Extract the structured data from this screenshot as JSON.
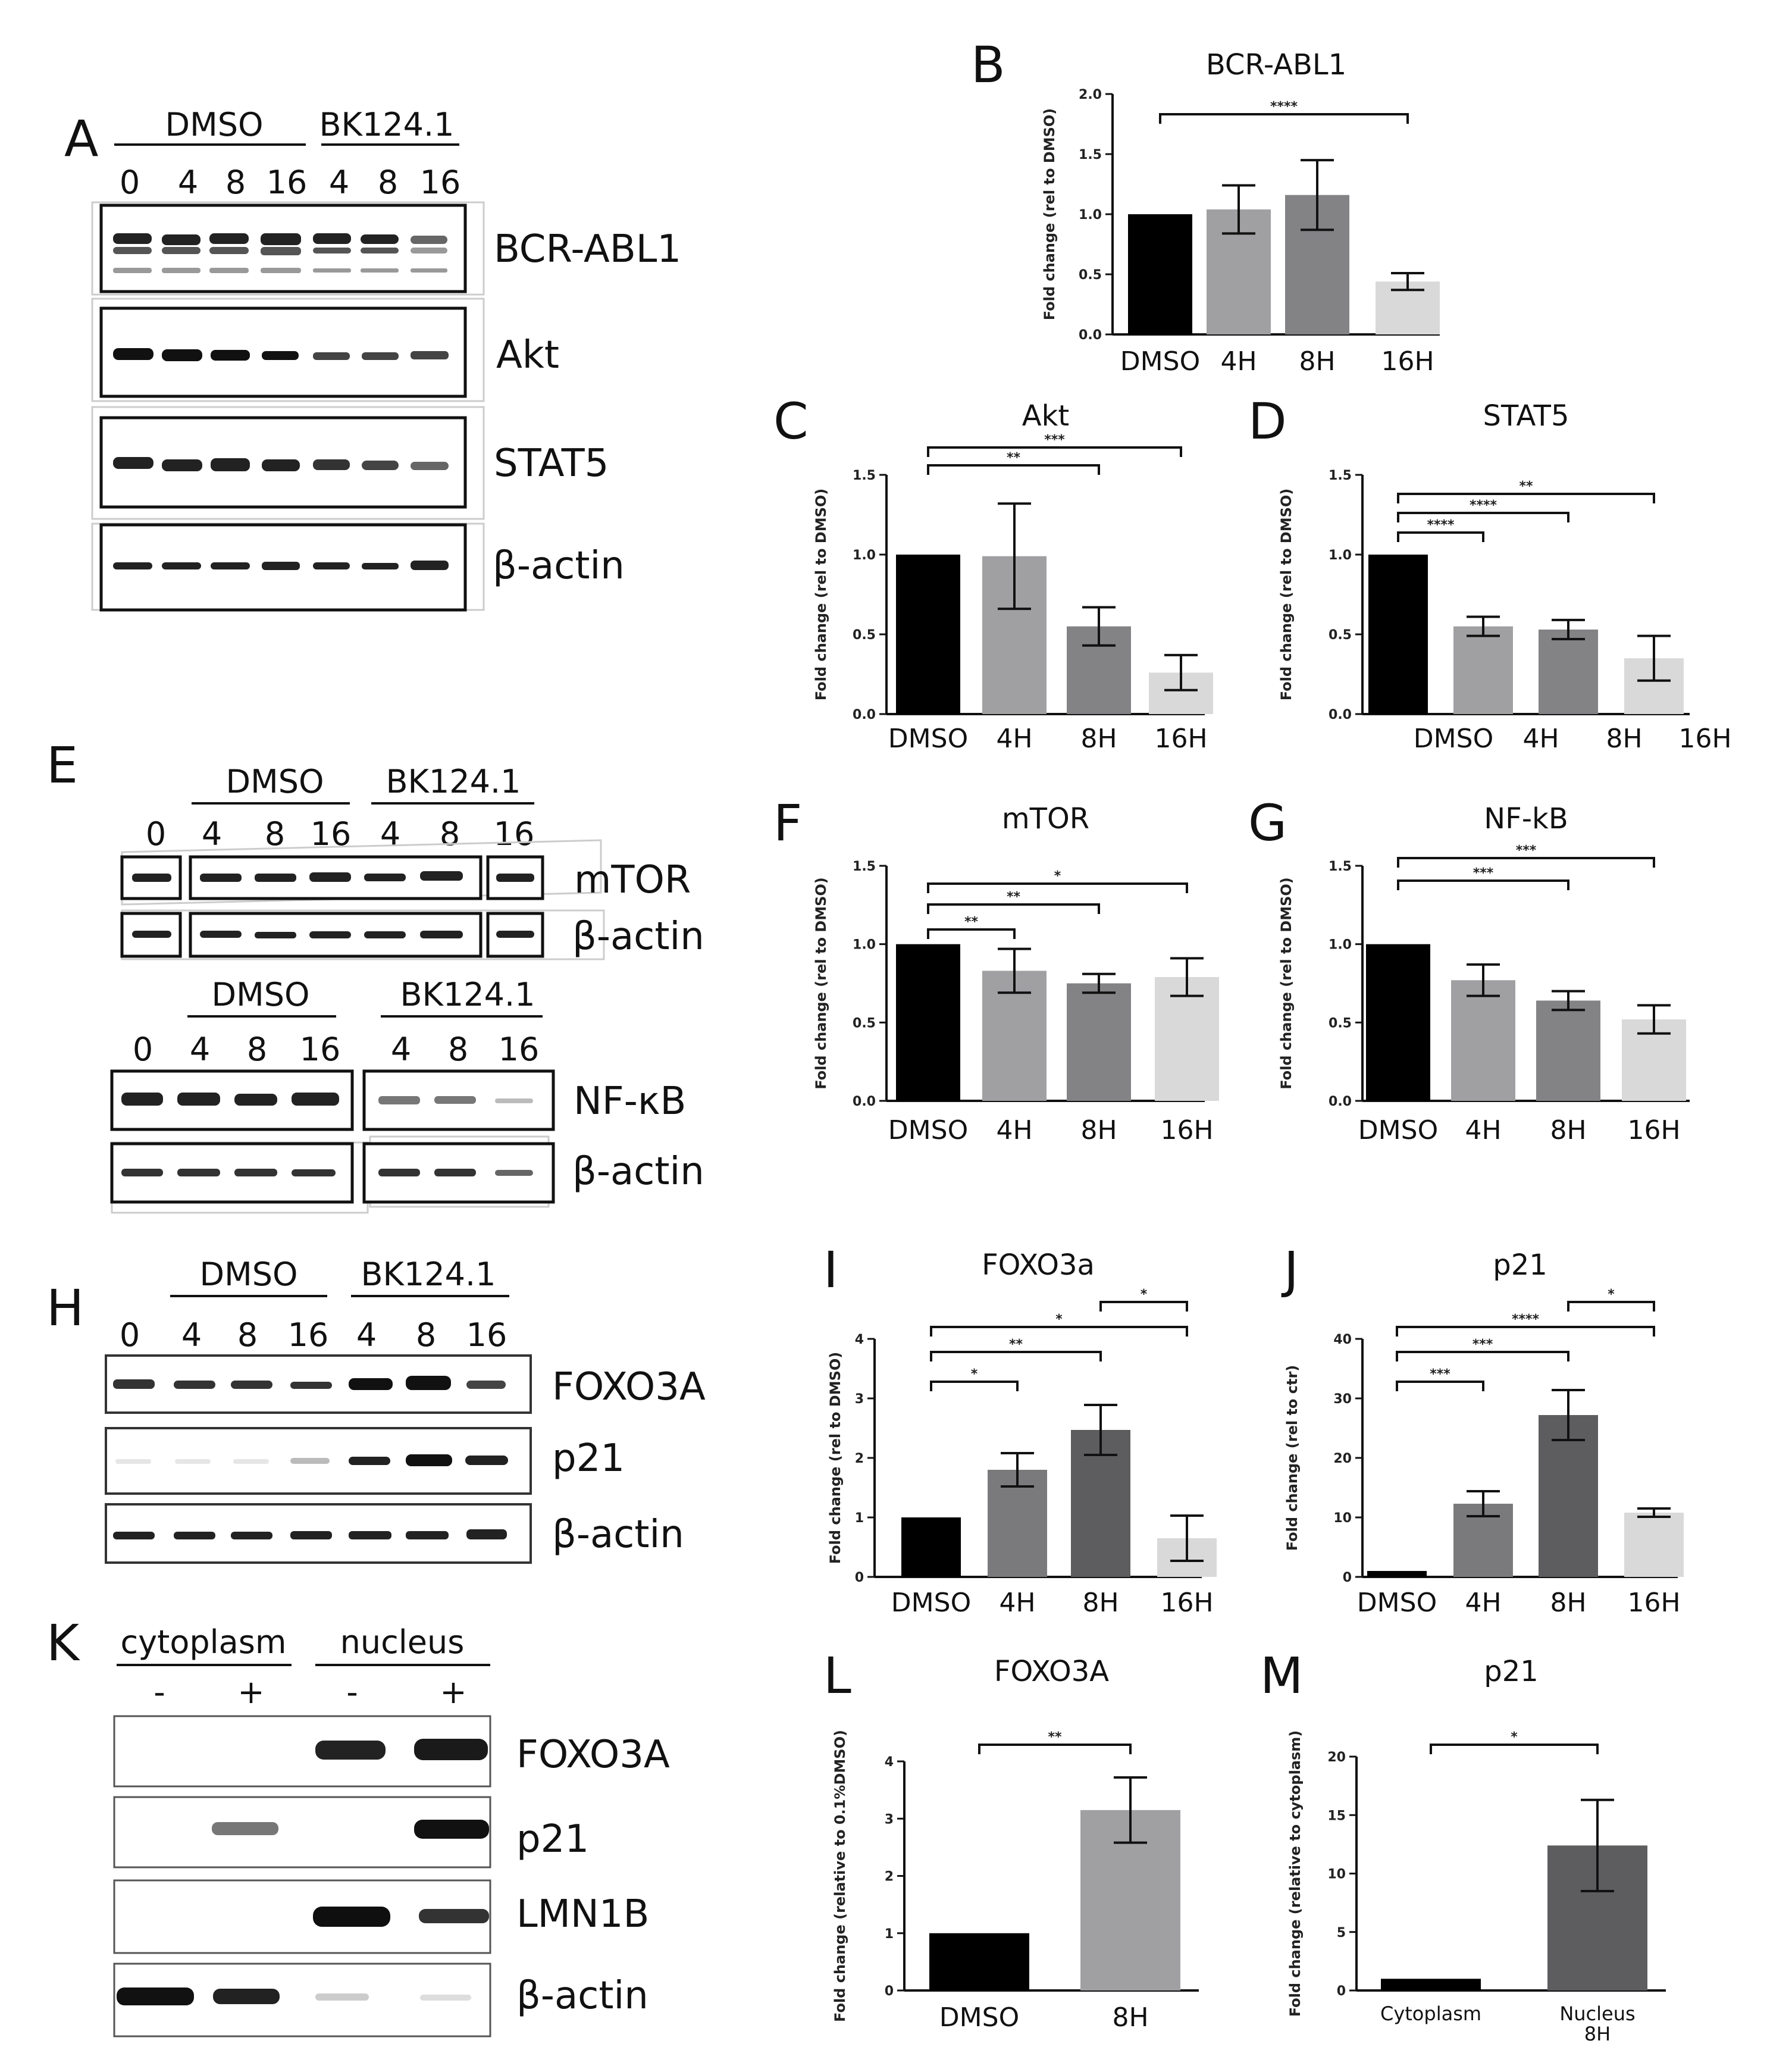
{
  "panel_letters": [
    "A",
    "B",
    "C",
    "D",
    "E",
    "F",
    "G",
    "H",
    "I",
    "J",
    "K",
    "L",
    "M"
  ],
  "blot_A": {
    "groups": [
      "DMSO",
      "BK124.1"
    ],
    "lanes": [
      "0",
      "4",
      "8",
      "16",
      "4",
      "8",
      "16"
    ],
    "proteins": [
      "BCR-ABL1",
      "Akt",
      "STAT5",
      "β-actin"
    ]
  },
  "blot_E": {
    "groups_top": [
      "DMSO",
      "BK124.1"
    ],
    "lanes_top": [
      "0",
      "4",
      "8",
      "16",
      "4",
      "8",
      "16"
    ],
    "proteins_top": [
      "mTOR",
      "β-actin"
    ],
    "groups_bottom": [
      "DMSO",
      "BK124.1"
    ],
    "lanes_bottom": [
      "0",
      "4",
      "8",
      "16",
      "4",
      "8",
      "16"
    ],
    "proteins_bottom": [
      "NF-κB",
      "β-actin"
    ]
  },
  "blot_H": {
    "groups": [
      "DMSO",
      "BK124.1"
    ],
    "lanes": [
      "0",
      "4",
      "8",
      "16",
      "4",
      "8",
      "16"
    ],
    "proteins": [
      "FOXO3A",
      "p21",
      "β-actin"
    ]
  },
  "blot_K": {
    "groups": [
      "cytoplasm",
      "nucleus"
    ],
    "lanes": [
      "-",
      "+",
      "-",
      "+"
    ],
    "proteins": [
      "FOXO3A",
      "p21",
      "LMN1B",
      "β-actin"
    ]
  },
  "chart_data": [
    {
      "id": "B",
      "type": "bar",
      "title": "BCR-ABL1",
      "ylabel": "Fold change (rel to DMSO)",
      "categories": [
        "DMSO",
        "4H",
        "8H",
        "16H"
      ],
      "values": [
        1.0,
        1.04,
        1.16,
        0.44
      ],
      "errors": [
        0,
        0.2,
        0.29,
        0.07
      ],
      "ylim": [
        0,
        2.0
      ],
      "yticks": [
        "0.0",
        "0.5",
        "1.0",
        "1.5",
        "2.0"
      ],
      "colors": [
        "#000000",
        "#a0a0a3",
        "#838386",
        "#d9d9d9"
      ],
      "significance": [
        {
          "from": 0,
          "to": 3,
          "label": "****"
        }
      ]
    },
    {
      "id": "C",
      "type": "bar",
      "title": "Akt",
      "ylabel": "Fold change (rel to DMSO)",
      "categories": [
        "DMSO",
        "4H",
        "8H",
        "16H"
      ],
      "values": [
        1.0,
        0.99,
        0.55,
        0.26
      ],
      "errors": [
        0,
        0.33,
        0.12,
        0.11
      ],
      "ylim": [
        0,
        1.5
      ],
      "yticks": [
        "0.0",
        "0.5",
        "1.0",
        "1.5"
      ],
      "colors": [
        "#000000",
        "#a0a0a3",
        "#838386",
        "#d9d9d9"
      ],
      "significance": [
        {
          "from": 0,
          "to": 2,
          "label": "**"
        },
        {
          "from": 0,
          "to": 3,
          "label": "***"
        }
      ]
    },
    {
      "id": "D",
      "type": "bar",
      "title": "STAT5",
      "ylabel": "Fold change (rel to DMSO)",
      "categories": [
        "DMSO",
        "4H",
        "8H",
        "16H"
      ],
      "values": [
        1.0,
        0.55,
        0.53,
        0.35
      ],
      "errors": [
        0,
        0.06,
        0.06,
        0.14
      ],
      "ylim": [
        0,
        1.5
      ],
      "yticks": [
        "0.0",
        "0.5",
        "1.0",
        "1.5"
      ],
      "colors": [
        "#000000",
        "#a0a0a3",
        "#838386",
        "#d9d9d9"
      ],
      "significance": [
        {
          "from": 0,
          "to": 1,
          "label": "****"
        },
        {
          "from": 0,
          "to": 2,
          "label": "****"
        },
        {
          "from": 0,
          "to": 3,
          "label": "**"
        }
      ]
    },
    {
      "id": "F",
      "type": "bar",
      "title": "mTOR",
      "ylabel": "Fold change (rel to DMSO)",
      "categories": [
        "DMSO",
        "4H",
        "8H",
        "16H"
      ],
      "values": [
        1.0,
        0.83,
        0.75,
        0.79
      ],
      "errors": [
        0,
        0.14,
        0.06,
        0.12
      ],
      "ylim": [
        0,
        1.5
      ],
      "yticks": [
        "0.0",
        "0.5",
        "1.0",
        "1.5"
      ],
      "colors": [
        "#000000",
        "#a0a0a3",
        "#838386",
        "#d9d9d9"
      ],
      "significance": [
        {
          "from": 0,
          "to": 1,
          "label": "**"
        },
        {
          "from": 0,
          "to": 2,
          "label": "**"
        },
        {
          "from": 0,
          "to": 3,
          "label": "*"
        }
      ]
    },
    {
      "id": "G",
      "type": "bar",
      "title": "NF-kB",
      "ylabel": "Fold change (rel to DMSO)",
      "categories": [
        "DMSO",
        "4H",
        "8H",
        "16H"
      ],
      "values": [
        1.0,
        0.77,
        0.64,
        0.52
      ],
      "errors": [
        0,
        0.1,
        0.06,
        0.09
      ],
      "ylim": [
        0,
        1.5
      ],
      "yticks": [
        "0.0",
        "0.5",
        "1.0",
        "1.5"
      ],
      "colors": [
        "#000000",
        "#a0a0a3",
        "#838386",
        "#d9d9d9"
      ],
      "significance": [
        {
          "from": 0,
          "to": 2,
          "label": "***"
        },
        {
          "from": 0,
          "to": 3,
          "label": "***"
        }
      ]
    },
    {
      "id": "I",
      "type": "bar",
      "title": "FOXO3a",
      "ylabel": "Fold change (rel to DMSO)",
      "categories": [
        "DMSO",
        "4H",
        "8H",
        "16H"
      ],
      "values": [
        1.0,
        1.8,
        2.47,
        0.65
      ],
      "errors": [
        0,
        0.28,
        0.42,
        0.38
      ],
      "ylim": [
        0,
        4
      ],
      "yticks": [
        "0",
        "1",
        "2",
        "3",
        "4"
      ],
      "colors": [
        "#000000",
        "#7a7a7d",
        "#5d5d60",
        "#d9d9d9"
      ],
      "significance": [
        {
          "from": 0,
          "to": 1,
          "label": "*"
        },
        {
          "from": 0,
          "to": 2,
          "label": "**"
        },
        {
          "from": 0,
          "to": 3,
          "label": "*"
        },
        {
          "from": 2,
          "to": 3,
          "label": "*"
        }
      ]
    },
    {
      "id": "J",
      "type": "bar",
      "title": "p21",
      "ylabel": "Fold change (rel to ctr)",
      "categories": [
        "DMSO",
        "4H",
        "8H",
        "16H"
      ],
      "values": [
        1.0,
        12.3,
        27.2,
        10.8
      ],
      "errors": [
        0,
        2.1,
        4.2,
        0.7
      ],
      "ylim": [
        0,
        40
      ],
      "yticks": [
        "0",
        "10",
        "20",
        "30",
        "40"
      ],
      "colors": [
        "#000000",
        "#7a7a7d",
        "#5d5d60",
        "#d9d9d9"
      ],
      "significance": [
        {
          "from": 0,
          "to": 1,
          "label": "***"
        },
        {
          "from": 0,
          "to": 2,
          "label": "***"
        },
        {
          "from": 0,
          "to": 3,
          "label": "****"
        },
        {
          "from": 2,
          "to": 3,
          "label": "*"
        }
      ]
    },
    {
      "id": "L",
      "type": "bar",
      "title": "FOXO3A",
      "ylabel": "Fold change (relative to 0.1%DMSO)",
      "categories": [
        "DMSO",
        "8H"
      ],
      "values": [
        1.0,
        3.15
      ],
      "errors": [
        0,
        0.57
      ],
      "ylim": [
        0,
        4
      ],
      "yticks": [
        "0",
        "1",
        "2",
        "3",
        "4"
      ],
      "colors": [
        "#000000",
        "#a0a0a3"
      ],
      "significance": [
        {
          "from": 0,
          "to": 1,
          "label": "**"
        }
      ]
    },
    {
      "id": "M",
      "type": "bar",
      "title": "p21",
      "ylabel": "Fold change (relative to cytoplasm)",
      "categories": [
        "Cytoplasm",
        "Nucleus 8H"
      ],
      "values": [
        1.0,
        12.4
      ],
      "errors": [
        0,
        3.9
      ],
      "ylim": [
        0,
        20
      ],
      "yticks": [
        "0",
        "5",
        "10",
        "15",
        "20"
      ],
      "colors": [
        "#000000",
        "#5d5d60"
      ],
      "significance": [
        {
          "from": 0,
          "to": 1,
          "label": "*"
        }
      ]
    }
  ]
}
